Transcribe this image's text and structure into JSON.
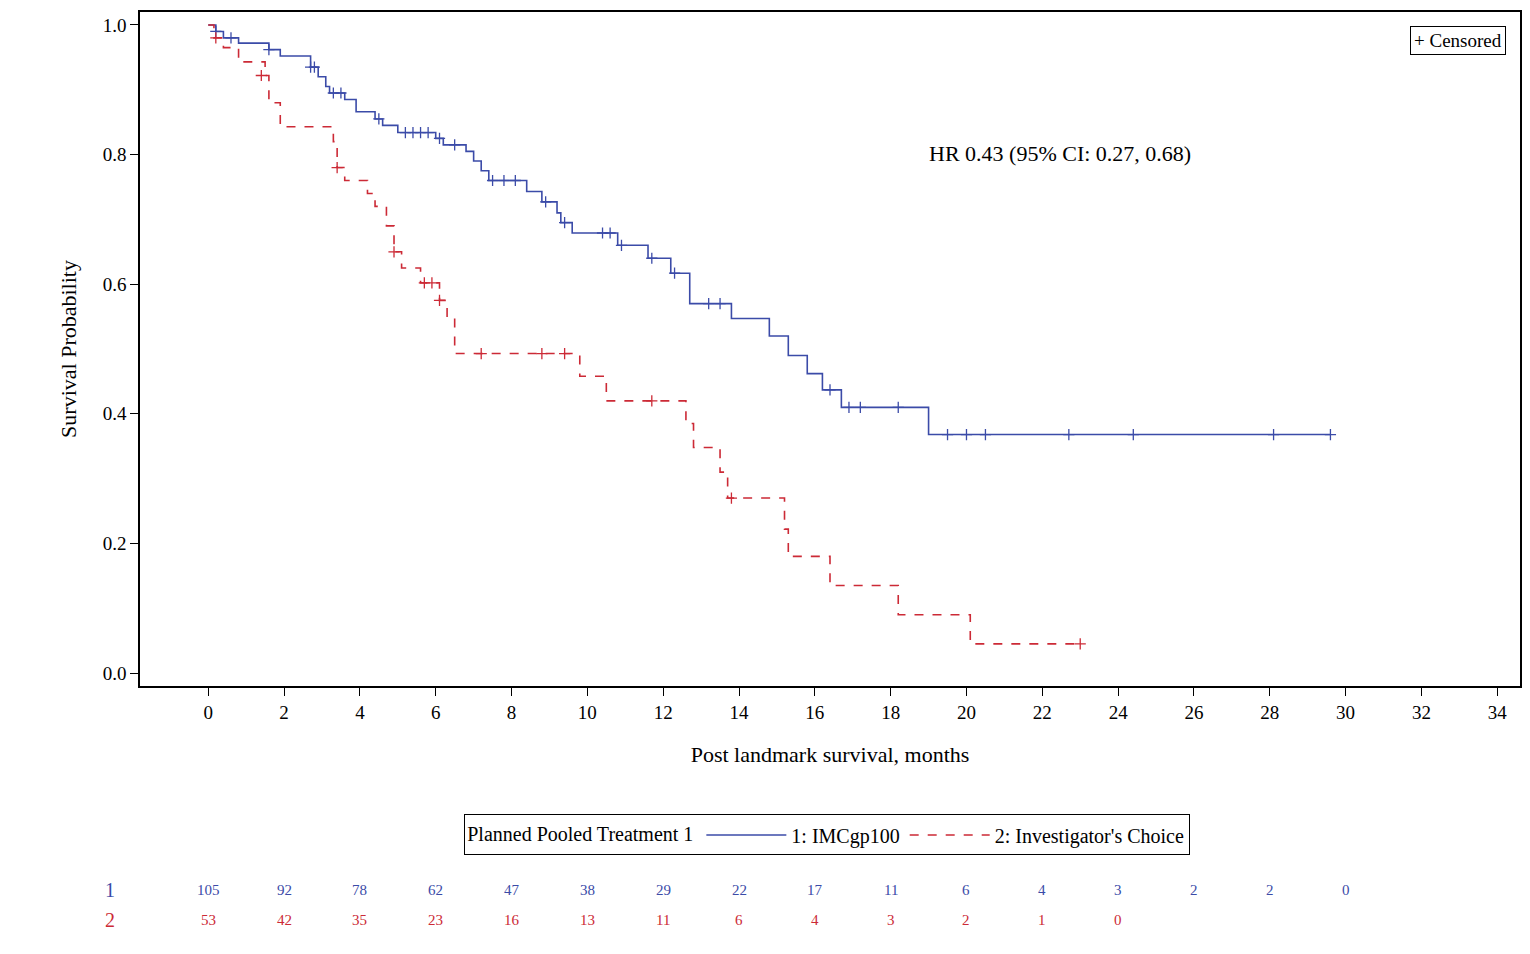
{
  "chart_data": {
    "type": "line",
    "xlabel": "Post landmark survival, months",
    "ylabel": "Survival Probability",
    "xlim": [
      -1.8,
      34.6
    ],
    "ylim": [
      -0.02,
      1.02
    ],
    "xticks": [
      0,
      2,
      4,
      6,
      8,
      10,
      12,
      14,
      16,
      18,
      20,
      22,
      24,
      26,
      28,
      30,
      32,
      34
    ],
    "yticks": [
      {
        "value": 0,
        "label": "0.0"
      },
      {
        "value": 0.2,
        "label": "0.2"
      },
      {
        "value": 0.4,
        "label": "0.4"
      },
      {
        "value": 0.6,
        "label": "0.6"
      },
      {
        "value": 0.8,
        "label": "0.8"
      },
      {
        "value": 1,
        "label": "1.0"
      }
    ],
    "grid": false,
    "legend": "bottom",
    "legend_title": "Planned Pooled Treatment 1",
    "annotation": "HR 0.43 (95% CI: 0.27, 0.68)",
    "censor_legend": "+ Censored",
    "series": [
      {
        "name": "1: IMCgp100",
        "color": "#3b4ba8",
        "line_style": "solid",
        "marker": "cross",
        "x": [
          0,
          0.2,
          0.4,
          0.8,
          1.6,
          1.9,
          2.7,
          2.9,
          3.1,
          3.2,
          3.6,
          3.9,
          4.4,
          4.6,
          5.0,
          6.0,
          6.2,
          6.8,
          7.0,
          7.2,
          7.4,
          8.4,
          8.8,
          9.2,
          9.3,
          9.6,
          10.8,
          11.6,
          12.2,
          12.7,
          13.8,
          14.8,
          15.3,
          15.8,
          16.2,
          16.7,
          19.0,
          29.6
        ],
        "values": [
          1.0,
          0.99,
          0.98,
          0.972,
          0.962,
          0.952,
          0.935,
          0.92,
          0.905,
          0.895,
          0.885,
          0.866,
          0.855,
          0.845,
          0.834,
          0.825,
          0.815,
          0.805,
          0.79,
          0.775,
          0.76,
          0.743,
          0.727,
          0.71,
          0.695,
          0.679,
          0.66,
          0.64,
          0.617,
          0.57,
          0.547,
          0.52,
          0.49,
          0.462,
          0.437,
          0.41,
          0.368,
          0.368
        ],
        "censored_x": [
          0.2,
          0.6,
          1.6,
          2.7,
          2.8,
          3.3,
          3.5,
          4.5,
          5.2,
          5.4,
          5.6,
          5.8,
          6.1,
          6.5,
          7.5,
          7.8,
          8.1,
          8.9,
          9.4,
          10.4,
          10.6,
          10.9,
          11.7,
          12.3,
          13.2,
          13.5,
          16.4,
          16.9,
          17.2,
          18.2,
          19.5,
          20.0,
          20.5,
          22.7,
          24.4,
          28.1,
          29.6
        ],
        "censored_values": [
          0.99,
          0.98,
          0.962,
          0.935,
          0.935,
          0.895,
          0.895,
          0.855,
          0.834,
          0.834,
          0.834,
          0.834,
          0.825,
          0.815,
          0.76,
          0.76,
          0.76,
          0.727,
          0.695,
          0.679,
          0.679,
          0.66,
          0.64,
          0.617,
          0.57,
          0.57,
          0.437,
          0.41,
          0.41,
          0.41,
          0.368,
          0.368,
          0.368,
          0.368,
          0.368,
          0.368,
          0.368
        ],
        "at_risk_label": "1",
        "at_risk_x": [
          0,
          2,
          4,
          6,
          8,
          10,
          12,
          14,
          16,
          18,
          20,
          22,
          24,
          26,
          28,
          30
        ],
        "at_risk": [
          105,
          92,
          78,
          62,
          47,
          38,
          29,
          22,
          17,
          11,
          6,
          4,
          3,
          2,
          2,
          0
        ]
      },
      {
        "name": "2: Investigator's Choice",
        "color": "#cc2a36",
        "line_style": "dash",
        "marker": "cross",
        "x": [
          0,
          0.15,
          0.4,
          0.8,
          1.5,
          1.6,
          1.9,
          3.3,
          3.4,
          3.6,
          4.2,
          4.4,
          4.7,
          4.9,
          5.1,
          5.6,
          6.1,
          6.3,
          6.5,
          9.8,
          10.5,
          12.6,
          12.8,
          13.5,
          13.7,
          15.2,
          15.3,
          16.4,
          18.2,
          20.1,
          23.0
        ],
        "values": [
          1.0,
          0.98,
          0.965,
          0.943,
          0.922,
          0.88,
          0.843,
          0.82,
          0.78,
          0.76,
          0.74,
          0.72,
          0.69,
          0.65,
          0.625,
          0.602,
          0.575,
          0.548,
          0.493,
          0.458,
          0.42,
          0.385,
          0.348,
          0.31,
          0.27,
          0.222,
          0.18,
          0.135,
          0.09,
          0.045,
          0.045
        ],
        "censored_x": [
          0.2,
          1.4,
          3.4,
          4.9,
          5.7,
          5.9,
          6.1,
          7.2,
          8.8,
          9.4,
          11.7,
          13.8,
          23.0
        ],
        "censored_values": [
          0.98,
          0.922,
          0.78,
          0.65,
          0.602,
          0.602,
          0.575,
          0.493,
          0.493,
          0.493,
          0.42,
          0.27,
          0.045
        ],
        "at_risk_label": "2",
        "at_risk_x": [
          0,
          2,
          4,
          6,
          8,
          10,
          12,
          14,
          16,
          18,
          20,
          22,
          24
        ],
        "at_risk": [
          53,
          42,
          35,
          23,
          16,
          13,
          11,
          6,
          4,
          3,
          2,
          1,
          0
        ]
      }
    ]
  }
}
